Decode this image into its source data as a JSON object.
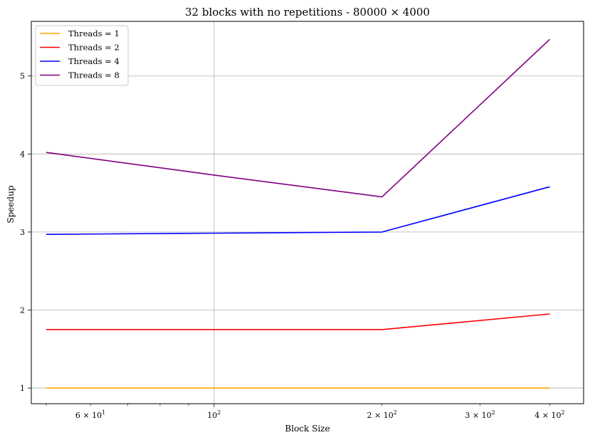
{
  "chart_data": {
    "type": "line",
    "title": "32 blocks with no repetitions - 80000 × 4000",
    "xlabel": "Block Size",
    "ylabel": "Speedup",
    "xscale": "log",
    "xlim": [
      47,
      460
    ],
    "ylim": [
      0.8,
      5.7
    ],
    "grid": true,
    "legend_position": "top-left",
    "x_ticks_major": [
      {
        "value": 100,
        "base": "10",
        "exp": "2"
      }
    ],
    "x_ticks_minor": [
      {
        "value": 60,
        "base": "6 × 10",
        "exp": "1"
      },
      {
        "value": 200,
        "base": "2 × 10",
        "exp": "2"
      },
      {
        "value": 300,
        "base": "3 × 10",
        "exp": "2"
      },
      {
        "value": 400,
        "base": "4 × 10",
        "exp": "2"
      }
    ],
    "x_minor_unlabeled": [
      50,
      70,
      80,
      90
    ],
    "y_ticks": [
      1,
      2,
      3,
      4,
      5
    ],
    "x": [
      50,
      100,
      200,
      400
    ],
    "series": [
      {
        "name": "Threads = 1",
        "color": "#ffa500",
        "values": [
          1.0,
          1.0,
          1.0,
          1.0
        ]
      },
      {
        "name": "Threads = 2",
        "color": "#ff0000",
        "values": [
          1.75,
          1.75,
          1.75,
          1.95
        ]
      },
      {
        "name": "Threads = 4",
        "color": "#0000ff",
        "values": [
          2.97,
          2.985,
          3.0,
          3.58
        ]
      },
      {
        "name": "Threads = 8",
        "color": "#800080",
        "values": [
          4.02,
          3.73,
          3.45,
          5.47
        ]
      }
    ]
  }
}
